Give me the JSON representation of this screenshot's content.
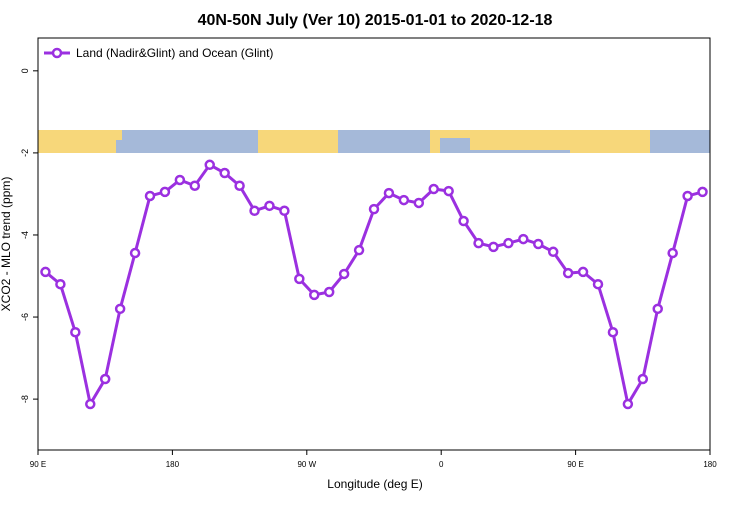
{
  "chart_data": {
    "type": "line",
    "title": "40N-50N July (Ver 10)   2015-01-01 to 2020-12-18",
    "x_label": "Longitude (deg E)",
    "y_label": "XCO2 - MLO trend (ppm)",
    "x": [
      95,
      105,
      115,
      125,
      135,
      145,
      155,
      165,
      175,
      185,
      195,
      205,
      215,
      225,
      235,
      245,
      255,
      265,
      275,
      285,
      295,
      305,
      315,
      325,
      335,
      345,
      355,
      365,
      375,
      385,
      395,
      405,
      415,
      425,
      435,
      445,
      455,
      465,
      475,
      485,
      495,
      505,
      515,
      525,
      535
    ],
    "series": [
      {
        "name": "Land (Nadir&Glint) and Ocean (Glint)",
        "color": "#9b30e0",
        "values": [
          -4.9,
          -5.2,
          -6.37,
          -8.12,
          -7.51,
          -5.8,
          -4.44,
          -3.05,
          -2.95,
          -2.66,
          -2.8,
          -2.29,
          -2.49,
          -2.8,
          -3.41,
          -3.29,
          -3.41,
          -5.07,
          -5.46,
          -5.39,
          -4.95,
          -4.37,
          -3.37,
          -2.98,
          -3.15,
          -3.22,
          -2.88,
          -2.93,
          -3.66,
          -4.2,
          -4.29,
          -4.2,
          -4.1,
          -4.22,
          -4.41,
          -4.93,
          -4.9,
          -5.2,
          -6.37,
          -8.12,
          -7.51,
          -5.8,
          -4.44,
          -3.05,
          -2.95
        ]
      }
    ],
    "xlim": [
      90,
      540
    ],
    "xticks": [
      {
        "value": 90,
        "label": "90 E"
      },
      180,
      {
        "value": 270,
        "label": "90 W"
      },
      {
        "value": 360,
        "label": "0"
      },
      {
        "value": 450,
        "label": "90 E"
      },
      {
        "value": 540,
        "label": "180"
      }
    ],
    "ylim": [
      -9.24,
      0.8
    ],
    "yticks": [
      0,
      -2,
      -4,
      -6,
      -8
    ],
    "legend": "top-left"
  }
}
